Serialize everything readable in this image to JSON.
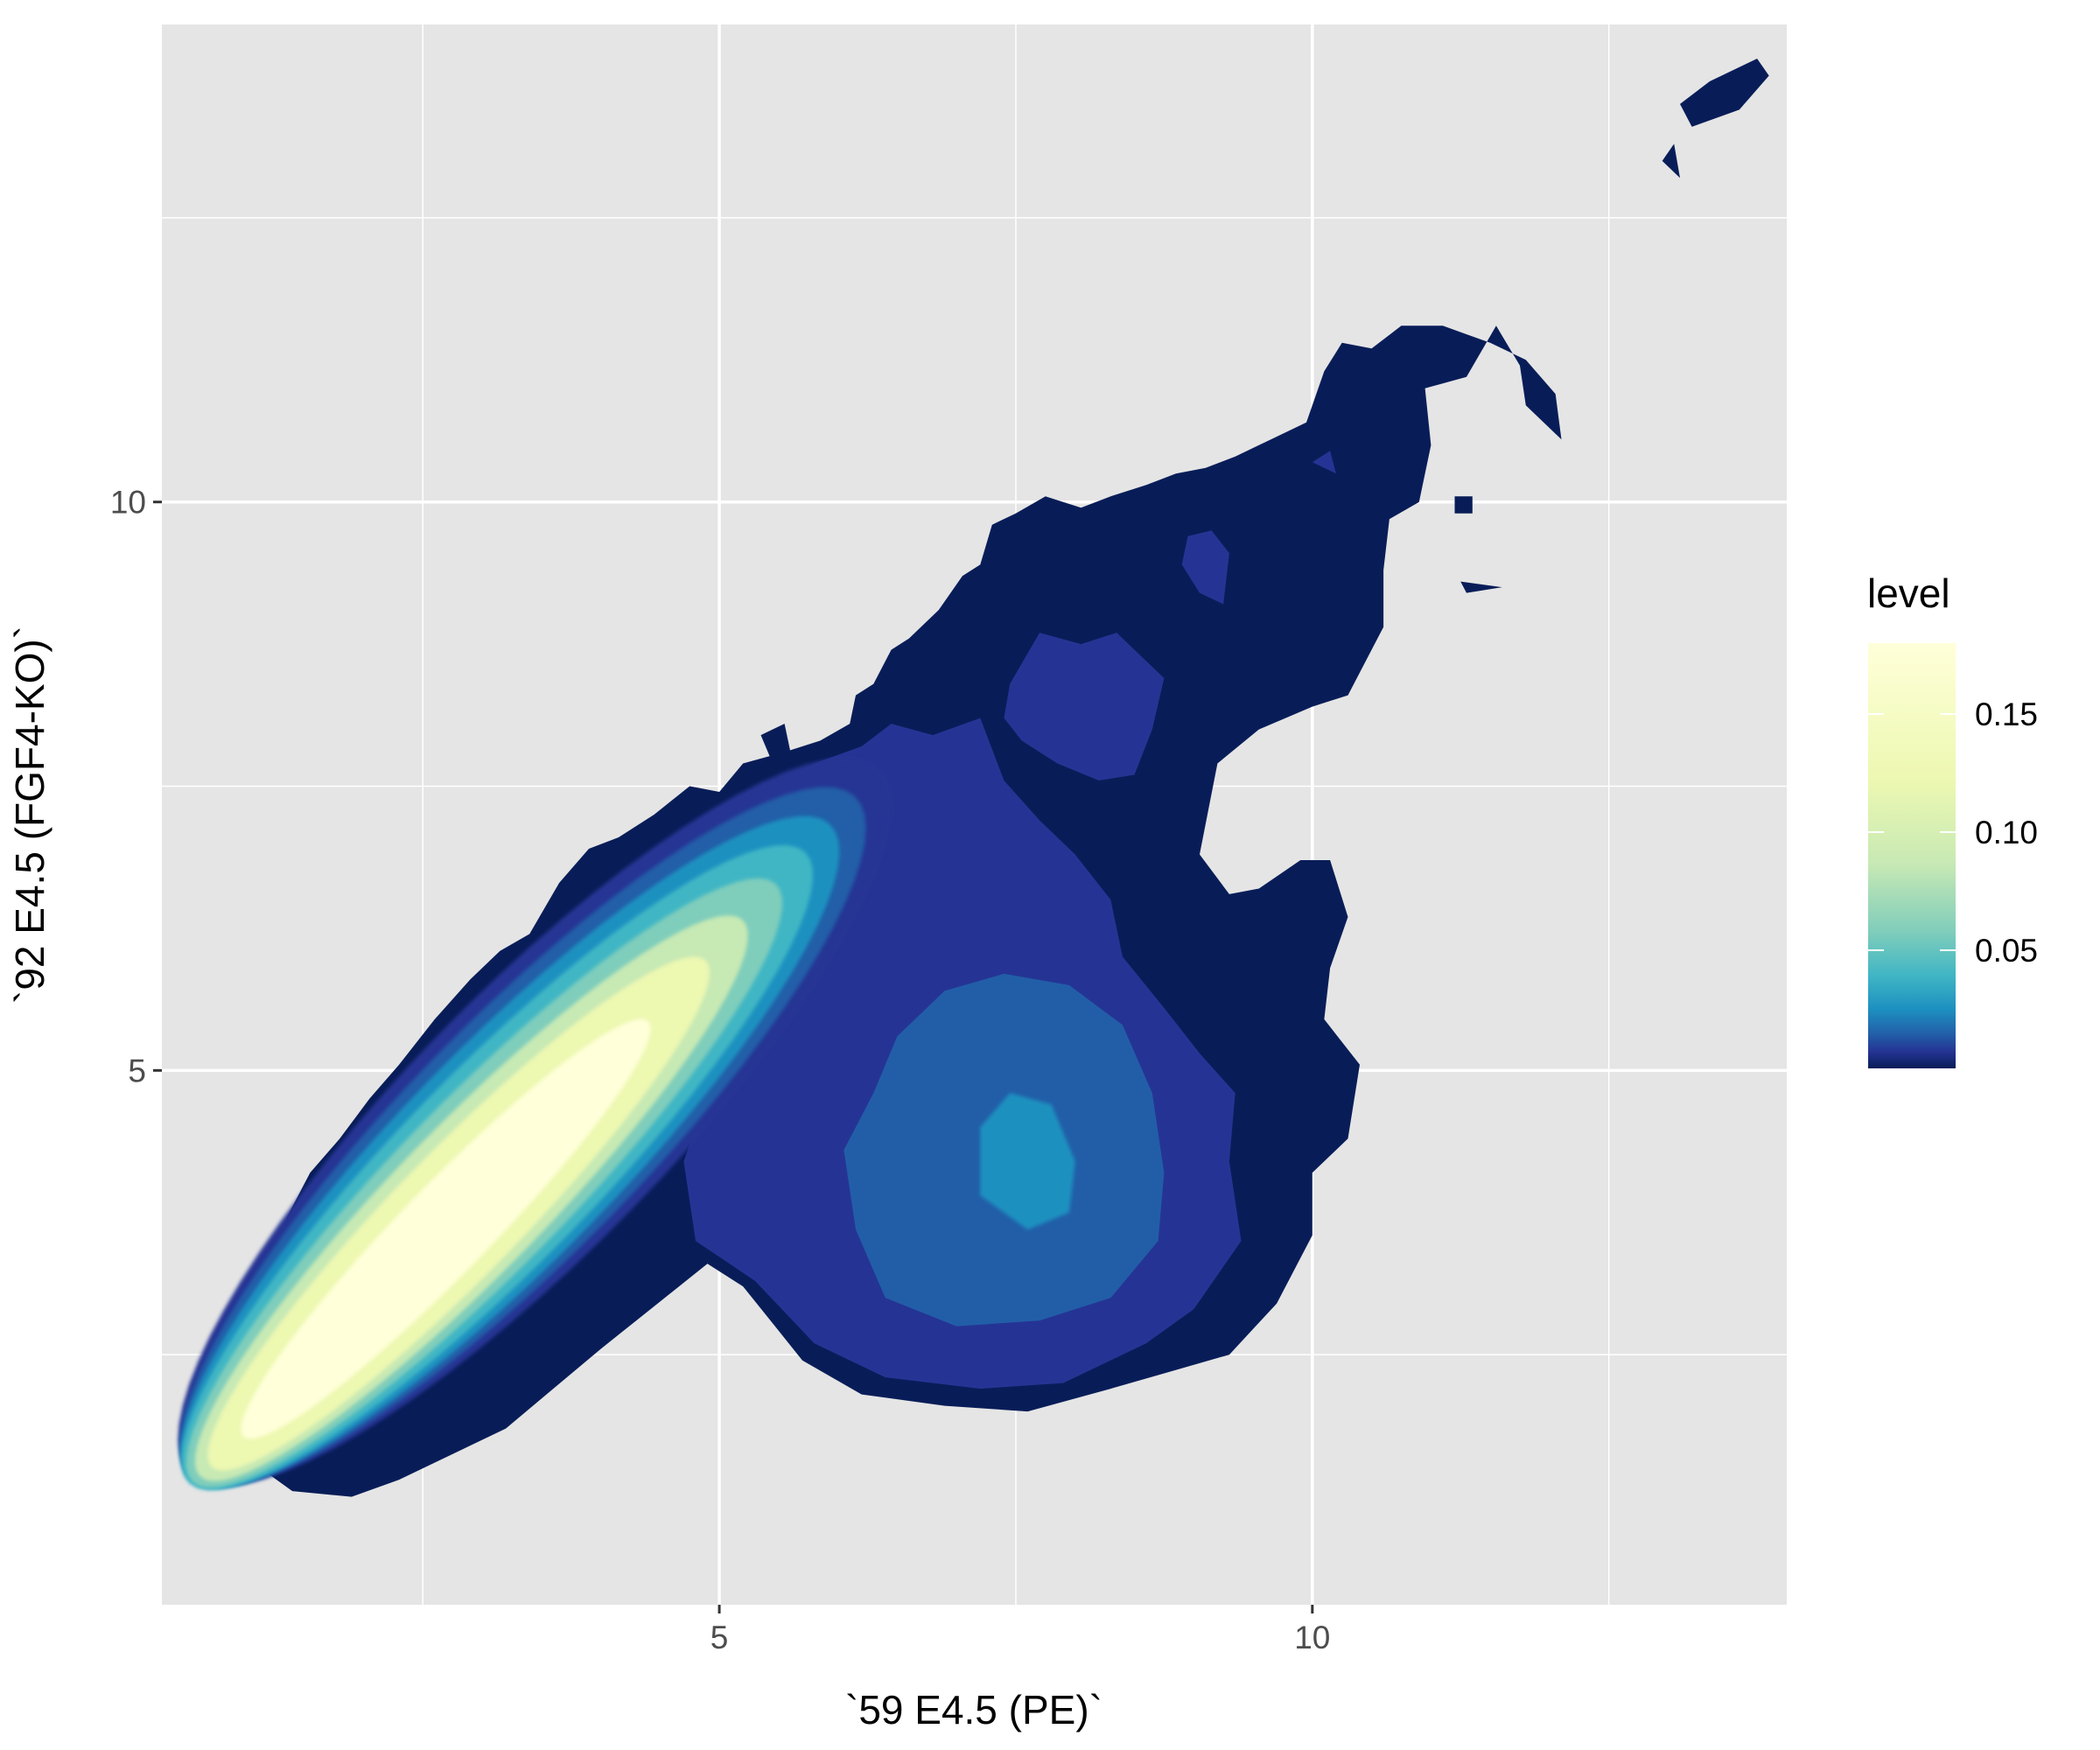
{
  "chart_data": {
    "type": "heatmap",
    "subtype": "filled-density-contour",
    "title": "",
    "xlabel": "`59 E4.5 (PE)`",
    "ylabel": "`92 E4.5 (FGF4-KO)`",
    "xlim": [
      0.3,
      14.0
    ],
    "ylim": [
      0.3,
      14.2
    ],
    "x_ticks": [
      5,
      10
    ],
    "y_ticks": [
      5,
      10
    ],
    "x_tick_labels": [
      "5",
      "10"
    ],
    "y_tick_labels": [
      "5",
      "10"
    ],
    "grid": true,
    "panel_background": "#e5e5e5",
    "legend": {
      "title": "level",
      "position": "right",
      "ticks": [
        0.05,
        0.1,
        0.15
      ],
      "tick_labels": [
        "0.05",
        "0.10",
        "0.15"
      ],
      "range": [
        0.0,
        0.18
      ],
      "palette": [
        "#081d58",
        "#253494",
        "#225ea8",
        "#1d91c0",
        "#41b6c4",
        "#7fcdbb",
        "#c7e9b4",
        "#edf8b1",
        "#ffffd9"
      ]
    },
    "regions": [
      {
        "name": "main-diagonal-cluster",
        "center": [
          3.3,
          3.9
        ],
        "peak_level": 0.18,
        "shape": "ellipse elongated along diagonal from (1.2,1.8) to (6.0,7.6)"
      },
      {
        "name": "secondary-cluster",
        "center": [
          7.8,
          4.2
        ],
        "peak_level": 0.02,
        "shape": "roughly round blob spanning x 5.5-10.5, y 1.8-8.2"
      },
      {
        "name": "upper-arm",
        "center": [
          10.0,
          9.5
        ],
        "peak_level": 0.006,
        "shape": "thin arm extending toward (11.9, 11.6)"
      },
      {
        "name": "outlier-top-right",
        "center": [
          13.4,
          13.4
        ],
        "peak_level": 0.003,
        "shape": "small isolated island"
      }
    ]
  }
}
